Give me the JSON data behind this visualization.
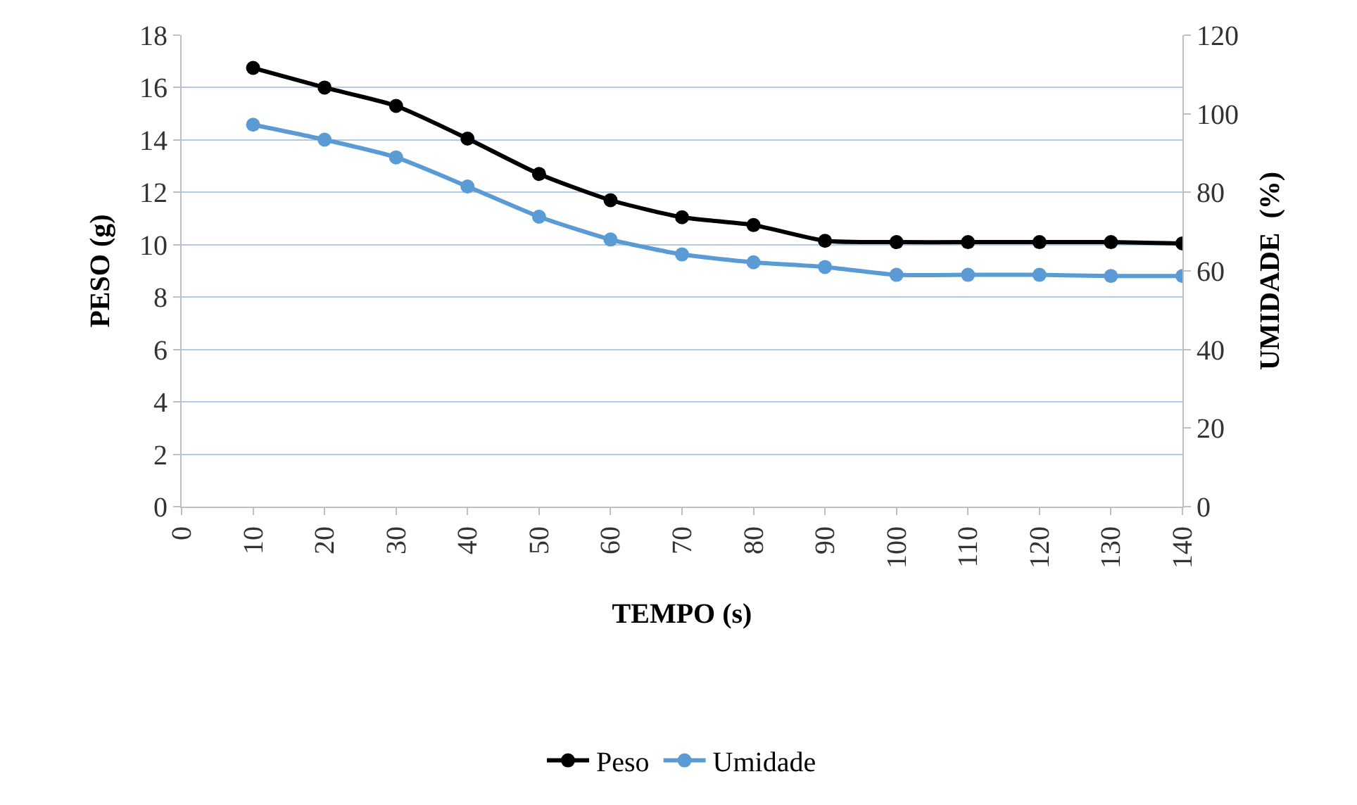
{
  "chart_data": {
    "type": "line",
    "xlabel": "TEMPO (s)",
    "ylabel": "PESO (g)",
    "y2label": "UMIDADE  (%)",
    "x": [
      10,
      20,
      30,
      40,
      50,
      60,
      70,
      80,
      90,
      100,
      110,
      120,
      130,
      140
    ],
    "series": [
      {
        "name": "Peso",
        "color": "#000000",
        "values": [
          16.75,
          16.0,
          15.3,
          14.05,
          12.7,
          11.7,
          11.05,
          10.75,
          10.15,
          10.1,
          10.1,
          10.1,
          10.1,
          10.05
        ]
      },
      {
        "name": "Umidade",
        "color": "#5b9bd5",
        "axis": "y2",
        "values": [
          97.2,
          93.4,
          88.9,
          81.5,
          73.8,
          68.0,
          64.2,
          62.2,
          61.0,
          59.0,
          59.0,
          59.0,
          58.7,
          58.7
        ]
      }
    ],
    "xlim": [
      0,
      140
    ],
    "xticks": [
      0,
      10,
      20,
      30,
      40,
      50,
      60,
      70,
      80,
      90,
      100,
      110,
      120,
      130,
      140
    ],
    "ylim": [
      0,
      18
    ],
    "yticks": [
      0,
      2,
      4,
      6,
      8,
      10,
      12,
      14,
      16,
      18
    ],
    "y2lim": [
      0,
      120
    ],
    "y2ticks": [
      0,
      20,
      40,
      60,
      80,
      100,
      120
    ],
    "grid": "y",
    "legend": "bottom",
    "marker": "circle",
    "line_style": "solid"
  }
}
